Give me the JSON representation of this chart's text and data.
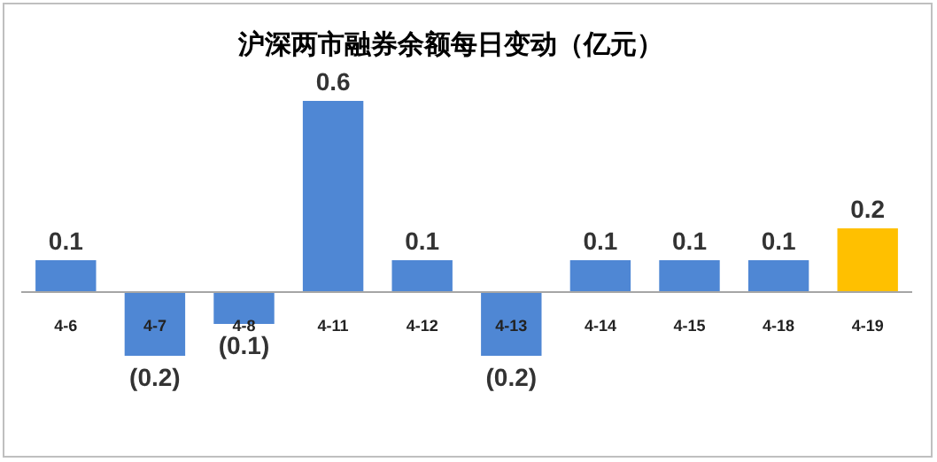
{
  "chart_data": {
    "type": "bar",
    "title": "沪深两市融券余额每日变动（亿元）",
    "categories": [
      "4-6",
      "4-7",
      "4-8",
      "4-11",
      "4-12",
      "4-13",
      "4-14",
      "4-15",
      "4-18",
      "4-19"
    ],
    "values": [
      0.1,
      -0.2,
      -0.1,
      0.6,
      0.1,
      -0.2,
      0.1,
      0.1,
      0.1,
      0.2
    ],
    "colors": [
      "#4f87d4",
      "#4f87d4",
      "#4f87d4",
      "#4f87d4",
      "#4f87d4",
      "#4f87d4",
      "#4f87d4",
      "#4f87d4",
      "#4f87d4",
      "#ffc000"
    ],
    "value_labels": [
      "0.1",
      "(0.2)",
      "(0.1)",
      "0.6",
      "0.1",
      "(0.2)",
      "0.1",
      "0.1",
      "0.1",
      "0.2"
    ]
  }
}
